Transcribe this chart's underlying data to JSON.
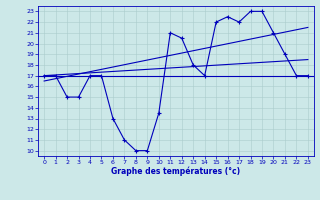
{
  "xlabel": "Graphe des températures (°c)",
  "bg_color": "#cce8e8",
  "grid_color": "#aacccc",
  "line_color": "#0000bb",
  "xlim": [
    -0.5,
    23.5
  ],
  "ylim": [
    9.5,
    23.5
  ],
  "yticks": [
    10,
    11,
    12,
    13,
    14,
    15,
    16,
    17,
    18,
    19,
    20,
    21,
    22,
    23
  ],
  "xticks": [
    0,
    1,
    2,
    3,
    4,
    5,
    6,
    7,
    8,
    9,
    10,
    11,
    12,
    13,
    14,
    15,
    16,
    17,
    18,
    19,
    20,
    21,
    22,
    23
  ],
  "curve1_x": [
    0,
    1,
    2,
    3,
    4,
    5,
    6,
    7,
    8,
    9,
    10,
    11,
    12,
    13,
    14,
    15,
    16,
    17,
    18,
    19,
    20,
    21,
    22,
    23
  ],
  "curve1_y": [
    17,
    17,
    15,
    15,
    17,
    17,
    13,
    11,
    10,
    10,
    13.5,
    21,
    20.5,
    18,
    17,
    22,
    22.5,
    22,
    23,
    23,
    21,
    19,
    17,
    17
  ],
  "flat_line_y": 17,
  "trend2_x": [
    0,
    23
  ],
  "trend2_y": [
    16.5,
    21.5
  ],
  "trend3_x": [
    0,
    23
  ],
  "trend3_y": [
    17.0,
    18.5
  ],
  "figwidth": 3.2,
  "figheight": 2.0,
  "dpi": 100
}
